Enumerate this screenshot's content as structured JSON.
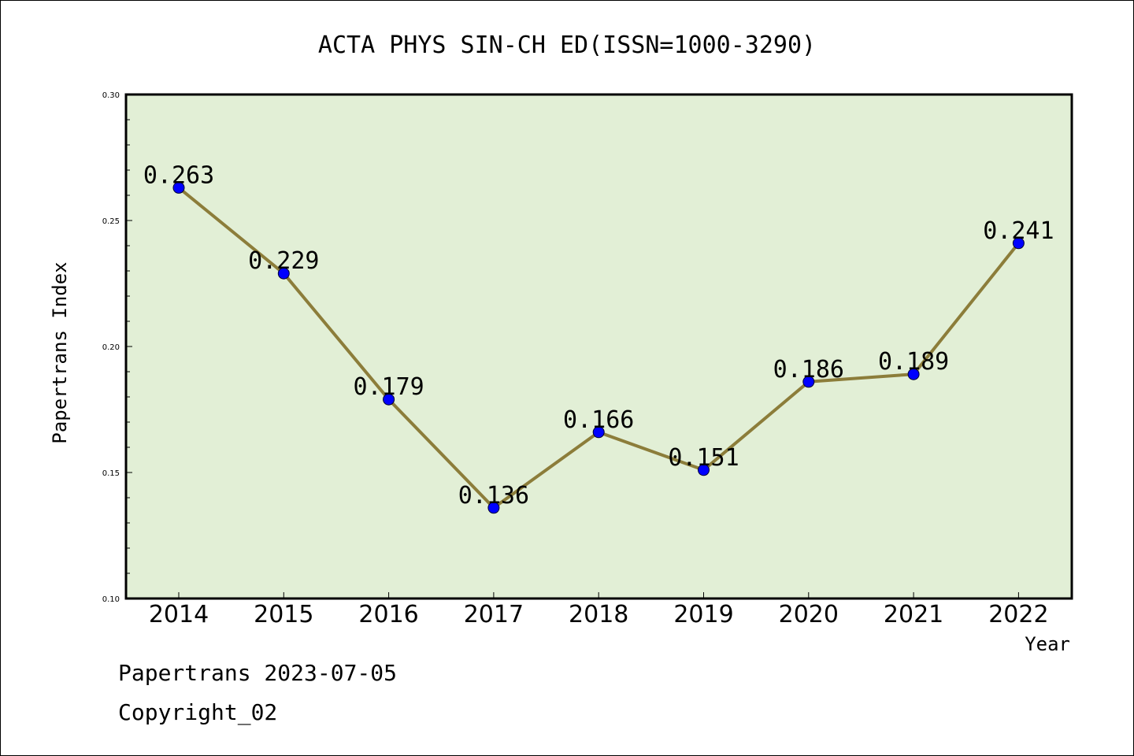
{
  "chart_data": {
    "type": "line",
    "title": "ACTA PHYS SIN-CH ED(ISSN=1000-3290)",
    "xlabel": "Year",
    "ylabel": "Papertrans Index",
    "categories": [
      "2014",
      "2015",
      "2016",
      "2017",
      "2018",
      "2019",
      "2020",
      "2021",
      "2022"
    ],
    "values": [
      0.263,
      0.229,
      0.179,
      0.136,
      0.166,
      0.151,
      0.186,
      0.189,
      0.241
    ],
    "data_labels": [
      "0.263",
      "0.229",
      "0.179",
      "0.136",
      "0.166",
      "0.151",
      "0.186",
      "0.189",
      "0.241"
    ],
    "ylim": [
      0.1,
      0.3
    ],
    "y_ticks": [
      "0.10",
      "0.15",
      "0.20",
      "0.25",
      "0.30"
    ],
    "grid": false,
    "colors": {
      "plot_background": "#e2efd6",
      "line": "#8c7d3a",
      "marker": "#0000ff"
    }
  },
  "footer": {
    "line1": "Papertrans 2023-07-05",
    "line2": "Copyright_02"
  }
}
